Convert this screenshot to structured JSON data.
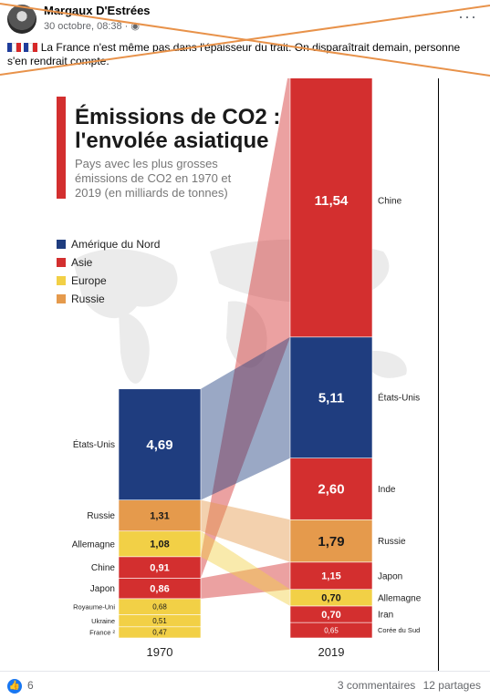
{
  "post": {
    "author": "Margaux D'Estrées",
    "date": "30 octobre, 08:38 ·",
    "text": "La France n'est même pas dans l'épaisseur du trait. On disparaîtrait demain, personne s'en rendrait compte.",
    "more_label": "···"
  },
  "footer": {
    "reaction_count": "6",
    "comments": "3 commentaires",
    "shares": "12 partages"
  },
  "colors": {
    "north_america": "#1f3d7f",
    "asia": "#d32f2f",
    "europe": "#f2d046",
    "russia": "#e59a4c"
  },
  "chart_data": {
    "type": "bar",
    "title_line1": "Émissions de CO2 :",
    "title_line2": "l'envolée asiatique",
    "subtitle": [
      "Pays avec les plus grosses",
      "émissions de CO2 en 1970 et",
      "2019 (en milliards de tonnes)"
    ],
    "legend": [
      {
        "name": "Amérique du Nord",
        "color_key": "north_america"
      },
      {
        "name": "Asie",
        "color_key": "asia"
      },
      {
        "name": "Europe",
        "color_key": "europe"
      },
      {
        "name": "Russie",
        "color_key": "russia"
      }
    ],
    "categories": [
      "1970",
      "2019"
    ],
    "stacks": [
      {
        "year": "1970",
        "segments": [
          {
            "country": "France ²",
            "value": 0.47,
            "label": "0,47",
            "region": "europe"
          },
          {
            "country": "Ukraine",
            "value": 0.51,
            "label": "0,51",
            "region": "europe"
          },
          {
            "country": "Royaume-Uni",
            "value": 0.68,
            "label": "0,68",
            "region": "europe"
          },
          {
            "country": "Japon",
            "value": 0.86,
            "label": "0,86",
            "region": "asia"
          },
          {
            "country": "Chine",
            "value": 0.91,
            "label": "0,91",
            "region": "asia"
          },
          {
            "country": "Allemagne",
            "value": 1.08,
            "label": "1,08",
            "region": "europe"
          },
          {
            "country": "Russie",
            "value": 1.31,
            "label": "1,31",
            "region": "russia"
          },
          {
            "country": "États-Unis",
            "value": 4.69,
            "label": "4,69",
            "region": "north_america"
          }
        ]
      },
      {
        "year": "2019",
        "segments": [
          {
            "country": "Corée du Sud",
            "value": 0.65,
            "label": "0,65",
            "region": "asia"
          },
          {
            "country": "Iran",
            "value": 0.7,
            "label": "0,70",
            "region": "asia"
          },
          {
            "country": "Allemagne",
            "value": 0.7,
            "label": "0,70",
            "region": "europe"
          },
          {
            "country": "Japon",
            "value": 1.15,
            "label": "1,15",
            "region": "asia"
          },
          {
            "country": "Russie",
            "value": 1.79,
            "label": "1,79",
            "region": "russia"
          },
          {
            "country": "Inde",
            "value": 2.6,
            "label": "2,60",
            "region": "asia"
          },
          {
            "country": "États-Unis",
            "value": 5.11,
            "label": "5,11",
            "region": "north_america"
          },
          {
            "country": "Chine",
            "value": 11.54,
            "label": "11,54",
            "region": "asia"
          }
        ]
      }
    ]
  }
}
